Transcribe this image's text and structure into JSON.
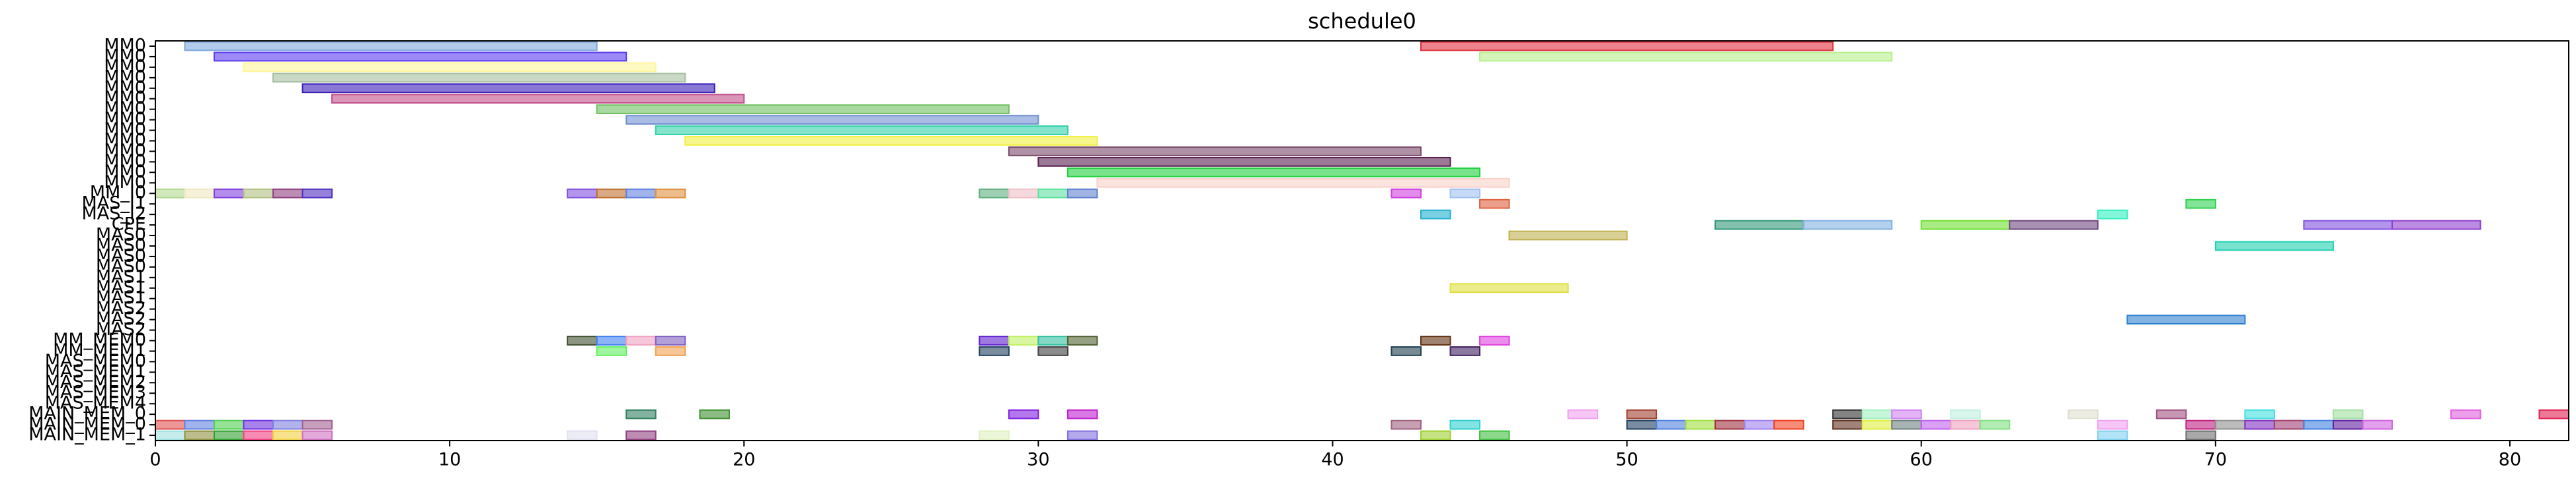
{
  "chart_data": {
    "type": "gantt",
    "title": "schedule0",
    "xlim": [
      0,
      82
    ],
    "xticks": [
      0,
      10,
      20,
      30,
      40,
      50,
      60,
      70,
      80
    ],
    "rows": [
      {
        "label": "MM0",
        "tasks": [
          {
            "start": 1,
            "end": 15,
            "color": "#7fa8dc"
          },
          {
            "start": 43,
            "end": 57,
            "color": "#e0303f"
          }
        ]
      },
      {
        "label": "MM0",
        "tasks": [
          {
            "start": 2,
            "end": 16,
            "color": "#5b3cf0"
          },
          {
            "start": 45,
            "end": 59,
            "color": "#b8f08c"
          }
        ]
      },
      {
        "label": "MM0",
        "tasks": [
          {
            "start": 3,
            "end": 17,
            "color": "#fff59a"
          }
        ]
      },
      {
        "label": "MM0",
        "tasks": [
          {
            "start": 4,
            "end": 18,
            "color": "#a6bfa0"
          }
        ]
      },
      {
        "label": "MM0",
        "tasks": [
          {
            "start": 5,
            "end": 19,
            "color": "#3a1fb8"
          }
        ]
      },
      {
        "label": "MM0",
        "tasks": [
          {
            "start": 6,
            "end": 20,
            "color": "#c0508a"
          }
        ]
      },
      {
        "label": "MM0",
        "tasks": [
          {
            "start": 15,
            "end": 29,
            "color": "#6fc060"
          }
        ]
      },
      {
        "label": "MM0",
        "tasks": [
          {
            "start": 16,
            "end": 30,
            "color": "#6f8fd0"
          }
        ]
      },
      {
        "label": "MM0",
        "tasks": [
          {
            "start": 17,
            "end": 31,
            "color": "#30d0a8"
          }
        ]
      },
      {
        "label": "MM0",
        "tasks": [
          {
            "start": 18,
            "end": 32,
            "color": "#f0f040"
          }
        ]
      },
      {
        "label": "MM0",
        "tasks": [
          {
            "start": 29,
            "end": 43,
            "color": "#7a4a6a"
          }
        ]
      },
      {
        "label": "MM0",
        "tasks": [
          {
            "start": 30,
            "end": 44,
            "color": "#5a2050"
          }
        ]
      },
      {
        "label": "MM0",
        "tasks": [
          {
            "start": 31,
            "end": 45,
            "color": "#20d040"
          }
        ]
      },
      {
        "label": "MM0",
        "tasks": [
          {
            "start": 32,
            "end": 46,
            "color": "#f8d0c8"
          }
        ]
      },
      {
        "label": "MM_I0",
        "tasks": [
          {
            "start": 0,
            "end": 1,
            "color": "#b0d890"
          },
          {
            "start": 1,
            "end": 2,
            "color": "#f0e8c0"
          },
          {
            "start": 2,
            "end": 3,
            "color": "#8040e0"
          },
          {
            "start": 3,
            "end": 4,
            "color": "#b0c080"
          },
          {
            "start": 4,
            "end": 5,
            "color": "#904080"
          },
          {
            "start": 5,
            "end": 6,
            "color": "#5030c0"
          },
          {
            "start": 14,
            "end": 15,
            "color": "#8050e0"
          },
          {
            "start": 15,
            "end": 16,
            "color": "#c07030"
          },
          {
            "start": 16,
            "end": 17,
            "color": "#6080e0"
          },
          {
            "start": 17,
            "end": 18,
            "color": "#e09040"
          },
          {
            "start": 28,
            "end": 29,
            "color": "#60b080"
          },
          {
            "start": 29,
            "end": 30,
            "color": "#f0c0c8"
          },
          {
            "start": 30,
            "end": 31,
            "color": "#60e0a0"
          },
          {
            "start": 31,
            "end": 32,
            "color": "#6080d0"
          },
          {
            "start": 42,
            "end": 43,
            "color": "#d040e0"
          },
          {
            "start": 44,
            "end": 45,
            "color": "#a0c0f0"
          }
        ]
      },
      {
        "label": "MAS_I1",
        "tasks": [
          {
            "start": 45,
            "end": 46,
            "color": "#e06040"
          },
          {
            "start": 69,
            "end": 70,
            "color": "#30d050"
          }
        ]
      },
      {
        "label": "MAS_I2",
        "tasks": [
          {
            "start": 43,
            "end": 44,
            "color": "#20b0d0"
          },
          {
            "start": 66,
            "end": 67,
            "color": "#30f0c0"
          }
        ]
      },
      {
        "label": "CPE",
        "tasks": [
          {
            "start": 53,
            "end": 56,
            "color": "#309878"
          },
          {
            "start": 56,
            "end": 59,
            "color": "#80b0e0"
          },
          {
            "start": 60,
            "end": 63,
            "color": "#70e030"
          },
          {
            "start": 63,
            "end": 66,
            "color": "#704880"
          },
          {
            "start": 73,
            "end": 76,
            "color": "#8050e0"
          },
          {
            "start": 76,
            "end": 79,
            "color": "#9040d0"
          }
        ]
      },
      {
        "label": "MAS0",
        "tasks": [
          {
            "start": 46,
            "end": 50,
            "color": "#c0b050"
          }
        ]
      },
      {
        "label": "MAS0",
        "tasks": [
          {
            "start": 70,
            "end": 74,
            "color": "#20d0b0"
          }
        ]
      },
      {
        "label": "MAS0",
        "tasks": []
      },
      {
        "label": "MAS0",
        "tasks": []
      },
      {
        "label": "MAS1",
        "tasks": []
      },
      {
        "label": "MAS1",
        "tasks": [
          {
            "start": 44,
            "end": 48,
            "color": "#e0e040"
          }
        ]
      },
      {
        "label": "MAS1",
        "tasks": []
      },
      {
        "label": "MAS2",
        "tasks": []
      },
      {
        "label": "MAS2",
        "tasks": [
          {
            "start": 67,
            "end": 71,
            "color": "#3080d0"
          }
        ]
      },
      {
        "label": "MAS2",
        "tasks": []
      },
      {
        "label": "MM_MEM0",
        "tasks": [
          {
            "start": 14,
            "end": 15,
            "color": "#405030"
          },
          {
            "start": 15,
            "end": 16,
            "color": "#4080f0"
          },
          {
            "start": 16,
            "end": 17,
            "color": "#f0a0c0"
          },
          {
            "start": 17,
            "end": 18,
            "color": "#8060c0"
          },
          {
            "start": 28,
            "end": 29,
            "color": "#6020d0"
          },
          {
            "start": 29,
            "end": 30,
            "color": "#c0f060"
          },
          {
            "start": 30,
            "end": 31,
            "color": "#30c0a0"
          },
          {
            "start": 31,
            "end": 32,
            "color": "#506030"
          },
          {
            "start": 43,
            "end": 44,
            "color": "#603010"
          },
          {
            "start": 45,
            "end": 46,
            "color": "#e040e0"
          }
        ]
      },
      {
        "label": "MM_MEM1",
        "tasks": [
          {
            "start": 15,
            "end": 16,
            "color": "#60f060"
          },
          {
            "start": 17,
            "end": 18,
            "color": "#f0a050"
          },
          {
            "start": 28,
            "end": 29,
            "color": "#204060"
          },
          {
            "start": 30,
            "end": 31,
            "color": "#404040"
          },
          {
            "start": 42,
            "end": 43,
            "color": "#204050"
          },
          {
            "start": 44,
            "end": 45,
            "color": "#402060"
          }
        ]
      },
      {
        "label": "MAS_MEM0",
        "tasks": []
      },
      {
        "label": "MAS_MEM1",
        "tasks": []
      },
      {
        "label": "MAS_MEM2",
        "tasks": []
      },
      {
        "label": "MAS_MEM3",
        "tasks": []
      },
      {
        "label": "MAS_MEM4",
        "tasks": []
      },
      {
        "label": "MAIN_MEM_0",
        "tasks": [
          {
            "start": 16,
            "end": 17,
            "color": "#308060"
          },
          {
            "start": 18.5,
            "end": 19.5,
            "color": "#409030"
          },
          {
            "start": 29,
            "end": 30,
            "color": "#8020e0"
          },
          {
            "start": 31,
            "end": 32,
            "color": "#c020d0"
          },
          {
            "start": 48,
            "end": 49,
            "color": "#f0a0f0"
          },
          {
            "start": 50,
            "end": 51,
            "color": "#a04030"
          },
          {
            "start": 57,
            "end": 58,
            "color": "#303030"
          },
          {
            "start": 58,
            "end": 59,
            "color": "#a0f0c0"
          },
          {
            "start": 59,
            "end": 60,
            "color": "#d080f0"
          },
          {
            "start": 61,
            "end": 62,
            "color": "#c0f0e0"
          },
          {
            "start": 65,
            "end": 66,
            "color": "#e0e0d0"
          },
          {
            "start": 68,
            "end": 69,
            "color": "#a05080"
          },
          {
            "start": 71,
            "end": 72,
            "color": "#40e0e0"
          },
          {
            "start": 74,
            "end": 75,
            "color": "#a0e0a0"
          },
          {
            "start": 78,
            "end": 79,
            "color": "#e060e0"
          },
          {
            "start": 81,
            "end": 82,
            "color": "#e02050"
          }
        ]
      },
      {
        "label": "MAIN_MEM_0",
        "tasks": [
          {
            "start": 0,
            "end": 1,
            "color": "#e05050"
          },
          {
            "start": 1,
            "end": 2,
            "color": "#6080e0"
          },
          {
            "start": 2,
            "end": 3,
            "color": "#50d050"
          },
          {
            "start": 3,
            "end": 4,
            "color": "#7030e0"
          },
          {
            "start": 4,
            "end": 5,
            "color": "#8080e0"
          },
          {
            "start": 5,
            "end": 6,
            "color": "#a06090"
          },
          {
            "start": 42,
            "end": 43,
            "color": "#a06080"
          },
          {
            "start": 44,
            "end": 45,
            "color": "#30d0d0"
          },
          {
            "start": 50,
            "end": 51,
            "color": "#204060"
          },
          {
            "start": 51,
            "end": 52,
            "color": "#5080e0"
          },
          {
            "start": 52,
            "end": 53,
            "color": "#a0e040"
          },
          {
            "start": 53,
            "end": 54,
            "color": "#a03040"
          },
          {
            "start": 54,
            "end": 55,
            "color": "#a080f0"
          },
          {
            "start": 55,
            "end": 56,
            "color": "#f04020"
          },
          {
            "start": 57,
            "end": 58,
            "color": "#603020"
          },
          {
            "start": 58,
            "end": 59,
            "color": "#e0f040"
          },
          {
            "start": 59,
            "end": 60,
            "color": "#708080"
          },
          {
            "start": 60,
            "end": 61,
            "color": "#c060f0"
          },
          {
            "start": 61,
            "end": 62,
            "color": "#f0a0c0"
          },
          {
            "start": 62,
            "end": 63,
            "color": "#80e080"
          },
          {
            "start": 66,
            "end": 67,
            "color": "#f0a0f0"
          },
          {
            "start": 69,
            "end": 70,
            "color": "#c02080"
          },
          {
            "start": 70,
            "end": 71,
            "color": "#909090"
          },
          {
            "start": 71,
            "end": 72,
            "color": "#8030c0"
          },
          {
            "start": 72,
            "end": 73,
            "color": "#a04070"
          },
          {
            "start": 73,
            "end": 74,
            "color": "#4080e0"
          },
          {
            "start": 74,
            "end": 75,
            "color": "#6020a0"
          },
          {
            "start": 75,
            "end": 76,
            "color": "#d060e0"
          }
        ]
      },
      {
        "label": "MAIN_MEM_1",
        "tasks": [
          {
            "start": 0,
            "end": 1,
            "color": "#a0e0e0"
          },
          {
            "start": 1,
            "end": 2,
            "color": "#909040"
          },
          {
            "start": 2,
            "end": 3,
            "color": "#30a030"
          },
          {
            "start": 3,
            "end": 4,
            "color": "#f04080"
          },
          {
            "start": 4,
            "end": 5,
            "color": "#f0d040"
          },
          {
            "start": 5,
            "end": 6,
            "color": "#d070c0"
          },
          {
            "start": 14,
            "end": 15,
            "color": "#e0e0f0"
          },
          {
            "start": 16,
            "end": 17,
            "color": "#904080"
          },
          {
            "start": 28,
            "end": 29,
            "color": "#e0f0c0"
          },
          {
            "start": 31,
            "end": 32,
            "color": "#8070e0"
          },
          {
            "start": 43,
            "end": 44,
            "color": "#a0d030"
          },
          {
            "start": 45,
            "end": 46,
            "color": "#40c040"
          },
          {
            "start": 66,
            "end": 67,
            "color": "#80d0f0"
          },
          {
            "start": 69,
            "end": 70,
            "color": "#707070"
          }
        ]
      }
    ]
  }
}
